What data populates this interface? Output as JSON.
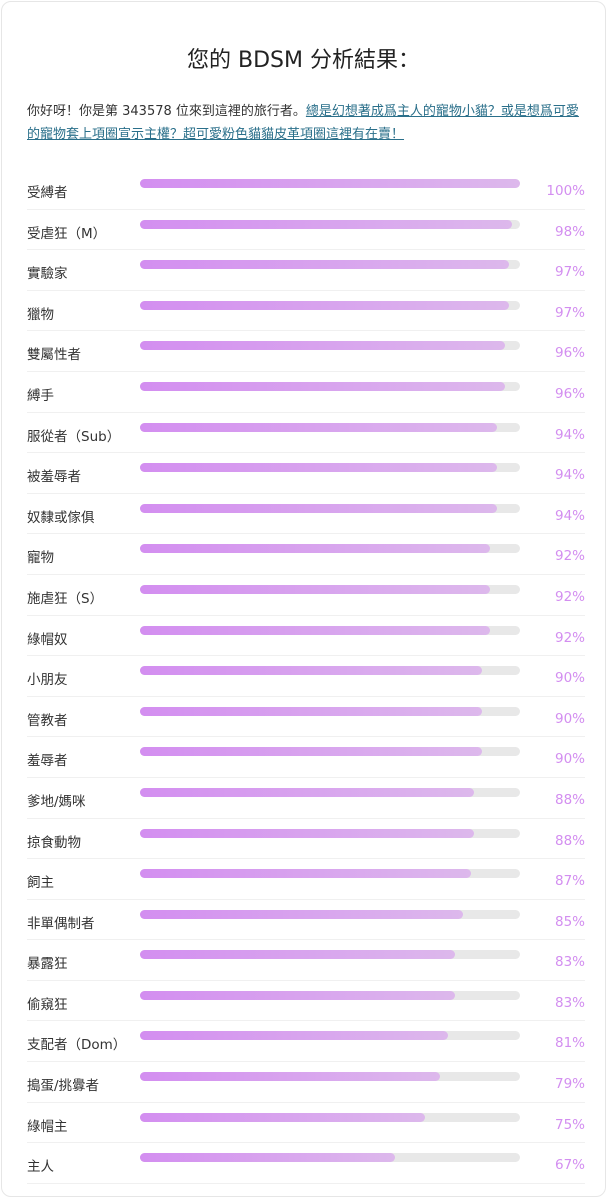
{
  "chart_data": {
    "type": "bar",
    "orientation": "horizontal",
    "title": "您的 BDSM 分析結果：",
    "subtitle": "你好呀！你是第 343578 位來到這裡的旅行者。",
    "link_text": "總是幻想著成爲主人的寵物小貓？或是想爲可愛的寵物套上項圈宣示主權？超可愛粉色貓貓皮革項圈這裡有在賣！",
    "categories": [
      "受縛者",
      "受虐狂（M）",
      "實驗家",
      "獵物",
      "雙屬性者",
      "縛手",
      "服從者（Sub）",
      "被羞辱者",
      "奴隸或傢俱",
      "寵物",
      "施虐狂（S）",
      "綠帽奴",
      "小朋友",
      "管教者",
      "羞辱者",
      "爹地/媽咪",
      "掠食動物",
      "飼主",
      "非單偶制者",
      "暴露狂",
      "偷窺狂",
      "支配者（Dom）",
      "搗蛋/挑釁者",
      "綠帽主",
      "主人"
    ],
    "values": [
      100,
      98,
      97,
      97,
      96,
      96,
      94,
      94,
      94,
      92,
      92,
      92,
      90,
      90,
      90,
      88,
      88,
      87,
      85,
      83,
      83,
      81,
      79,
      75,
      67
    ],
    "value_labels": [
      "100%",
      "98%",
      "97%",
      "97%",
      "96%",
      "96%",
      "94%",
      "94%",
      "94%",
      "92%",
      "92%",
      "92%",
      "90%",
      "90%",
      "90%",
      "88%",
      "88%",
      "87%",
      "85%",
      "83%",
      "83%",
      "81%",
      "79%",
      "75%",
      "67%"
    ],
    "xlim": [
      0,
      100
    ],
    "color": "#d38ef0"
  }
}
